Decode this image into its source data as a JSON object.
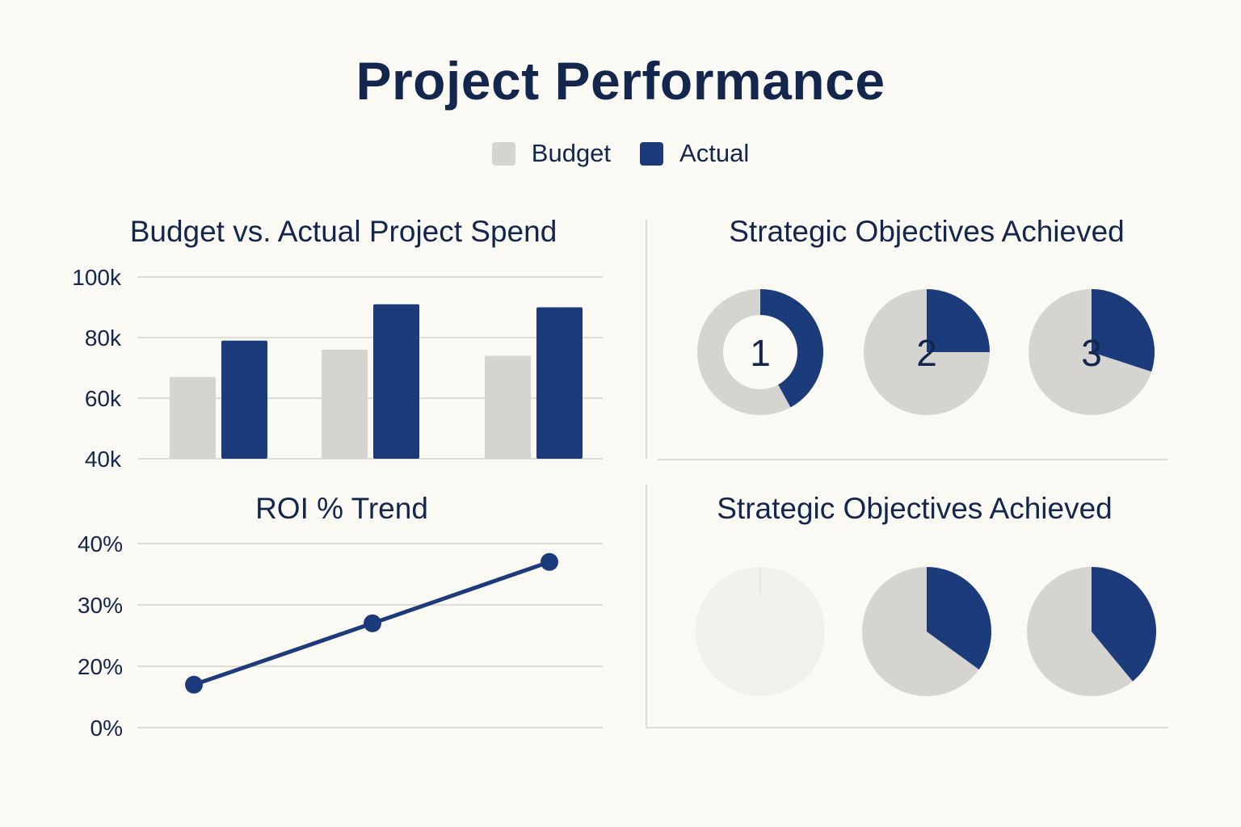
{
  "title": "Project Performance",
  "legend": [
    {
      "label": "Budget",
      "color": "#d5d4d0"
    },
    {
      "label": "Actual",
      "color": "#1c3b7a"
    }
  ],
  "colors": {
    "budget": "#d5d4d0",
    "actual": "#1c3b7a",
    "grid": "#dedcd6",
    "faded": "#f2f0ec"
  },
  "chart_data": [
    {
      "type": "bar",
      "title": "Budget vs. Actual Project Spend",
      "categories": [
        "",
        "",
        ""
      ],
      "series": [
        {
          "name": "Budget",
          "values": [
            67,
            76,
            74
          ]
        },
        {
          "name": "Actual",
          "values": [
            79,
            91,
            90
          ]
        }
      ],
      "yticks": [
        {
          "value": 40,
          "label": "40k"
        },
        {
          "value": 60,
          "label": "60k"
        },
        {
          "value": 80,
          "label": "80k"
        },
        {
          "value": 100,
          "label": "100k"
        }
      ],
      "ylim": [
        40,
        100
      ],
      "xlabel": "",
      "ylabel": "",
      "grid": true
    },
    {
      "type": "line",
      "title": "ROI % Trend",
      "x": [
        1,
        2,
        3
      ],
      "values": [
        17,
        27,
        37
      ],
      "yticks": [
        {
          "value": 0,
          "label": "0%",
          "pos": 0
        },
        {
          "value": 20,
          "label": "20%",
          "pos": 1
        },
        {
          "value": 30,
          "label": "30%",
          "pos": 2
        },
        {
          "value": 40,
          "label": "40%",
          "pos": 3
        }
      ],
      "ylim": [
        0,
        40
      ],
      "xlabel": "",
      "ylabel": "",
      "grid": true
    },
    {
      "type": "pie",
      "title": "Strategic Objectives Achieved",
      "slices": [
        {
          "label": "1",
          "actual_fraction": 0.42,
          "style": "donut"
        },
        {
          "label": "2",
          "actual_fraction": 0.25,
          "style": "pie"
        },
        {
          "label": "3",
          "actual_fraction": 0.3,
          "style": "pie"
        }
      ]
    },
    {
      "type": "pie",
      "title": "Strategic Objectives Achieved",
      "slices": [
        {
          "actual_fraction": 0,
          "style": "faded"
        },
        {
          "actual_fraction": 0.35,
          "style": "pie"
        },
        {
          "actual_fraction": 0.39,
          "style": "pie"
        }
      ]
    }
  ]
}
